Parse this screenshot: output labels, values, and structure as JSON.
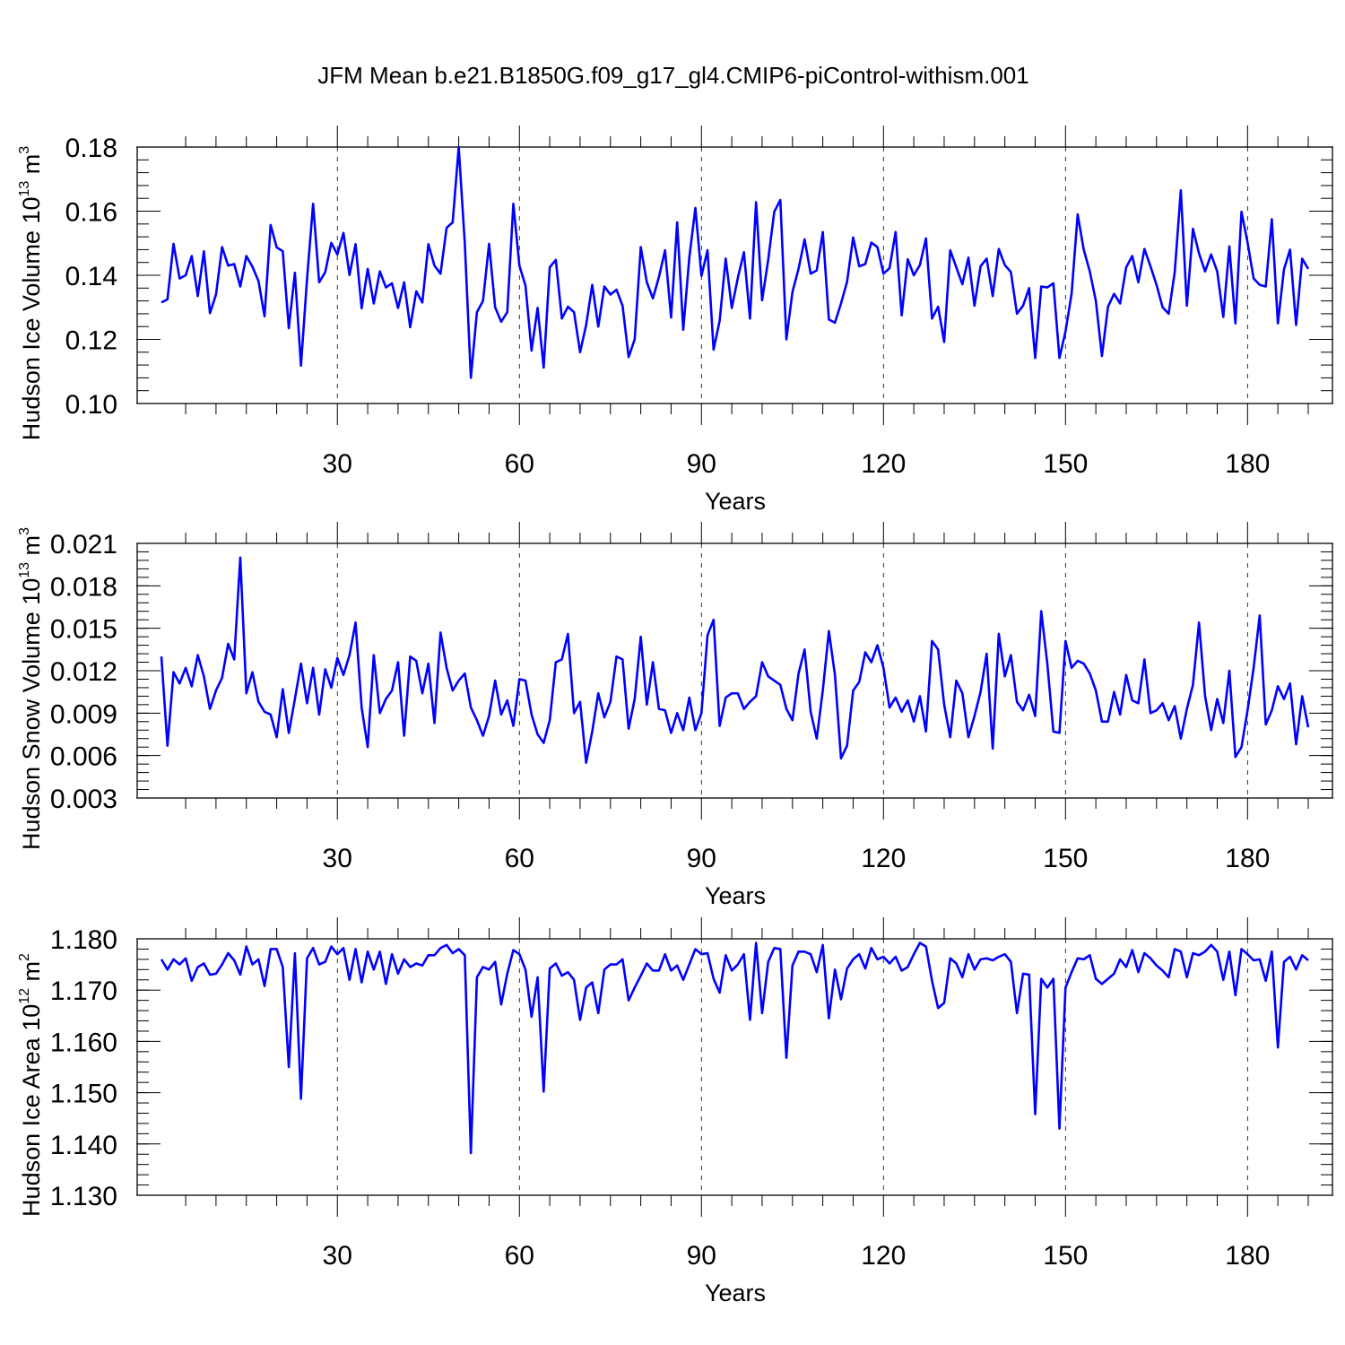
{
  "figure": {
    "title": "JFM Mean b.e21.B1850G.f09_g17_gl4.CMIP6-piControl-withism.001"
  },
  "chart_data": [
    {
      "type": "line",
      "xlabel": "Years",
      "ylabel": "Hudson Ice Volume",
      "ylabel_unit": {
        "base": " 10",
        "exp": "13",
        "tail": " m",
        "tail_exp": "3"
      },
      "xlim": [
        1,
        190
      ],
      "ylim": [
        0.1,
        0.18
      ],
      "xticks": [
        30,
        60,
        90,
        120,
        150,
        180
      ],
      "yticks": [
        0.1,
        0.12,
        0.14,
        0.16,
        0.18
      ],
      "ytick_labels": [
        "0.10",
        "0.12",
        "0.14",
        "0.16",
        "0.18"
      ],
      "y_minor_step": 0.004,
      "grid": "dashed vertical at x ticks",
      "line_color": "#0000ff",
      "x_start": 1,
      "values": [
        0.1315,
        0.1325,
        0.1498,
        0.139,
        0.14,
        0.146,
        0.1335,
        0.1475,
        0.1282,
        0.134,
        0.1488,
        0.143,
        0.1435,
        0.1365,
        0.146,
        0.1427,
        0.1382,
        0.1272,
        0.1557,
        0.1487,
        0.1475,
        0.1235,
        0.1408,
        0.1118,
        0.1388,
        0.1623,
        0.1378,
        0.141,
        0.1501,
        0.1465,
        0.1532,
        0.1401,
        0.1497,
        0.1297,
        0.142,
        0.1312,
        0.1412,
        0.1362,
        0.1375,
        0.1298,
        0.1378,
        0.1238,
        0.135,
        0.1315,
        0.1497,
        0.143,
        0.1405,
        0.1548,
        0.1565,
        0.18,
        0.15,
        0.108,
        0.1285,
        0.132,
        0.1498,
        0.13,
        0.1255,
        0.1285,
        0.1623,
        0.143,
        0.1368,
        0.1165,
        0.1298,
        0.1112,
        0.1425,
        0.1448,
        0.1265,
        0.1302,
        0.1285,
        0.116,
        0.1245,
        0.137,
        0.124,
        0.1365,
        0.134,
        0.1355,
        0.1305,
        0.1145,
        0.12,
        0.1488,
        0.1378,
        0.1328,
        0.1395,
        0.1478,
        0.1268,
        0.1565,
        0.123,
        0.1455,
        0.161,
        0.1398,
        0.1478,
        0.1168,
        0.1258,
        0.1452,
        0.1298,
        0.1392,
        0.1472,
        0.1265,
        0.1628,
        0.1322,
        0.1448,
        0.1598,
        0.1635,
        0.12,
        0.1348,
        0.142,
        0.1512,
        0.1405,
        0.1415,
        0.1535,
        0.1262,
        0.1252,
        0.1312,
        0.138,
        0.1518,
        0.1428,
        0.1435,
        0.1502,
        0.1488,
        0.1405,
        0.1422,
        0.1535,
        0.1275,
        0.145,
        0.14,
        0.1432,
        0.1515,
        0.1265,
        0.1302,
        0.1192,
        0.1478,
        0.1425,
        0.1372,
        0.1455,
        0.1305,
        0.1428,
        0.1452,
        0.1335,
        0.1482,
        0.1432,
        0.141,
        0.128,
        0.1305,
        0.136,
        0.1142,
        0.1365,
        0.1362,
        0.1375,
        0.1142,
        0.1225,
        0.1342,
        0.159,
        0.148,
        0.1412,
        0.132,
        0.1148,
        0.1302,
        0.1342,
        0.1312,
        0.1425,
        0.146,
        0.1378,
        0.1482,
        0.1428,
        0.137,
        0.13,
        0.128,
        0.141,
        0.1665,
        0.1305,
        0.1545,
        0.1468,
        0.1412,
        0.1465,
        0.1412,
        0.127,
        0.149,
        0.125,
        0.1598,
        0.1502,
        0.139,
        0.137,
        0.1365,
        0.1575,
        0.125,
        0.1418,
        0.148,
        0.1245,
        0.1452,
        0.142
      ]
    },
    {
      "type": "line",
      "xlabel": "Years",
      "ylabel": "Hudson Snow Volume",
      "ylabel_unit": {
        "base": " 10",
        "exp": "13",
        "tail": " m",
        "tail_exp": "3"
      },
      "xlim": [
        1,
        190
      ],
      "ylim": [
        0.003,
        0.021
      ],
      "xticks": [
        30,
        60,
        90,
        120,
        150,
        180
      ],
      "yticks": [
        0.003,
        0.006,
        0.009,
        0.012,
        0.015,
        0.018,
        0.021
      ],
      "ytick_labels": [
        "0.003",
        "0.006",
        "0.009",
        "0.012",
        "0.015",
        "0.018",
        "0.021"
      ],
      "y_minor_step": 0.0006,
      "grid": "dashed vertical at x ticks",
      "line_color": "#0000ff",
      "x_start": 1,
      "values": [
        0.013,
        0.0067,
        0.0119,
        0.0111,
        0.0122,
        0.0109,
        0.0131,
        0.0116,
        0.0093,
        0.0106,
        0.0115,
        0.0139,
        0.0128,
        0.02,
        0.0104,
        0.0119,
        0.0098,
        0.0091,
        0.0089,
        0.0073,
        0.0107,
        0.0076,
        0.01,
        0.0125,
        0.0097,
        0.0122,
        0.0089,
        0.0121,
        0.0108,
        0.0129,
        0.0117,
        0.0131,
        0.0154,
        0.0094,
        0.0066,
        0.0131,
        0.009,
        0.01,
        0.0106,
        0.0126,
        0.0074,
        0.013,
        0.0127,
        0.0104,
        0.0125,
        0.0083,
        0.0147,
        0.0122,
        0.0106,
        0.0113,
        0.0118,
        0.0094,
        0.0085,
        0.0074,
        0.0088,
        0.0113,
        0.0089,
        0.0099,
        0.0081,
        0.0114,
        0.0113,
        0.0089,
        0.0075,
        0.0069,
        0.0085,
        0.0126,
        0.0128,
        0.0146,
        0.009,
        0.0098,
        0.0055,
        0.0077,
        0.0104,
        0.0087,
        0.0098,
        0.013,
        0.0128,
        0.0079,
        0.01,
        0.0144,
        0.0096,
        0.0126,
        0.0093,
        0.0092,
        0.0076,
        0.009,
        0.0078,
        0.0101,
        0.0078,
        0.009,
        0.0145,
        0.0156,
        0.0081,
        0.0101,
        0.0104,
        0.0104,
        0.0093,
        0.0098,
        0.0102,
        0.0126,
        0.0116,
        0.0113,
        0.011,
        0.0093,
        0.0085,
        0.0118,
        0.0135,
        0.0091,
        0.0072,
        0.0106,
        0.0148,
        0.0117,
        0.0058,
        0.0067,
        0.0106,
        0.0112,
        0.0133,
        0.0126,
        0.0138,
        0.0122,
        0.0094,
        0.0101,
        0.0091,
        0.0099,
        0.0084,
        0.0102,
        0.0077,
        0.0141,
        0.0135,
        0.0096,
        0.0073,
        0.0113,
        0.0104,
        0.0073,
        0.0088,
        0.0105,
        0.0132,
        0.0065,
        0.0146,
        0.0116,
        0.0131,
        0.0098,
        0.0092,
        0.0103,
        0.0088,
        0.0162,
        0.0125,
        0.0077,
        0.0076,
        0.0141,
        0.0122,
        0.0127,
        0.0125,
        0.0118,
        0.0106,
        0.0084,
        0.0084,
        0.0105,
        0.0089,
        0.0117,
        0.0099,
        0.0097,
        0.0128,
        0.009,
        0.0092,
        0.0097,
        0.0085,
        0.0095,
        0.0072,
        0.0093,
        0.011,
        0.0154,
        0.0102,
        0.0078,
        0.01,
        0.0083,
        0.012,
        0.0059,
        0.0066,
        0.0092,
        0.0122,
        0.0159,
        0.0082,
        0.0092,
        0.0109,
        0.01,
        0.0111,
        0.0068,
        0.0102,
        0.008
      ]
    },
    {
      "type": "line",
      "xlabel": "Years",
      "ylabel": "Hudson Ice Area",
      "ylabel_unit": {
        "base": " 10",
        "exp": "12",
        "tail": " m",
        "tail_exp": "2"
      },
      "xlim": [
        1,
        190
      ],
      "ylim": [
        1.13,
        1.18
      ],
      "xticks": [
        30,
        60,
        90,
        120,
        150,
        180
      ],
      "yticks": [
        1.13,
        1.14,
        1.15,
        1.16,
        1.17,
        1.18
      ],
      "ytick_labels": [
        "1.130",
        "1.140",
        "1.150",
        "1.160",
        "1.170",
        "1.180"
      ],
      "y_minor_step": 0.002,
      "grid": "dashed vertical at x ticks",
      "line_color": "#0000ff",
      "x_start": 1,
      "values": [
        1.176,
        1.174,
        1.176,
        1.175,
        1.1762,
        1.1718,
        1.1745,
        1.1752,
        1.173,
        1.1732,
        1.175,
        1.1772,
        1.1758,
        1.173,
        1.1785,
        1.175,
        1.176,
        1.1708,
        1.178,
        1.178,
        1.1745,
        1.155,
        1.1772,
        1.1488,
        1.1762,
        1.1782,
        1.175,
        1.1755,
        1.1785,
        1.177,
        1.1782,
        1.172,
        1.178,
        1.1715,
        1.1775,
        1.174,
        1.1775,
        1.1712,
        1.177,
        1.1732,
        1.176,
        1.1745,
        1.1752,
        1.1748,
        1.1768,
        1.1768,
        1.1782,
        1.1788,
        1.1772,
        1.178,
        1.1768,
        1.1382,
        1.1725,
        1.1745,
        1.174,
        1.1755,
        1.1672,
        1.1732,
        1.1778,
        1.177,
        1.174,
        1.1648,
        1.1725,
        1.1502,
        1.1742,
        1.1752,
        1.1728,
        1.1735,
        1.172,
        1.1642,
        1.1705,
        1.1715,
        1.1655,
        1.174,
        1.175,
        1.175,
        1.176,
        1.168,
        1.1705,
        1.1728,
        1.1752,
        1.1738,
        1.1738,
        1.177,
        1.1738,
        1.1748,
        1.172,
        1.175,
        1.178,
        1.177,
        1.1772,
        1.1722,
        1.1695,
        1.1768,
        1.1738,
        1.175,
        1.177,
        1.1642,
        1.1792,
        1.1655,
        1.1755,
        1.1782,
        1.178,
        1.1568,
        1.1748,
        1.1775,
        1.1775,
        1.177,
        1.1735,
        1.1788,
        1.1645,
        1.174,
        1.1682,
        1.1742,
        1.176,
        1.177,
        1.1742,
        1.1782,
        1.176,
        1.1765,
        1.1752,
        1.1765,
        1.1738,
        1.1745,
        1.177,
        1.1792,
        1.1785,
        1.1718,
        1.1665,
        1.1675,
        1.1762,
        1.1752,
        1.1725,
        1.177,
        1.174,
        1.176,
        1.1762,
        1.1758,
        1.1765,
        1.177,
        1.1755,
        1.1655,
        1.1732,
        1.173,
        1.1458,
        1.1722,
        1.1705,
        1.1722,
        1.143,
        1.1705,
        1.1735,
        1.1762,
        1.176,
        1.1768,
        1.1722,
        1.1712,
        1.1722,
        1.1732,
        1.176,
        1.1745,
        1.1778,
        1.1735,
        1.1772,
        1.1762,
        1.1748,
        1.1738,
        1.1725,
        1.178,
        1.1775,
        1.1725,
        1.1772,
        1.1768,
        1.1775,
        1.1788,
        1.1775,
        1.172,
        1.1775,
        1.169,
        1.178,
        1.177,
        1.1758,
        1.176,
        1.1718,
        1.1775,
        1.1588,
        1.1755,
        1.1765,
        1.174,
        1.1768,
        1.1758
      ]
    }
  ]
}
